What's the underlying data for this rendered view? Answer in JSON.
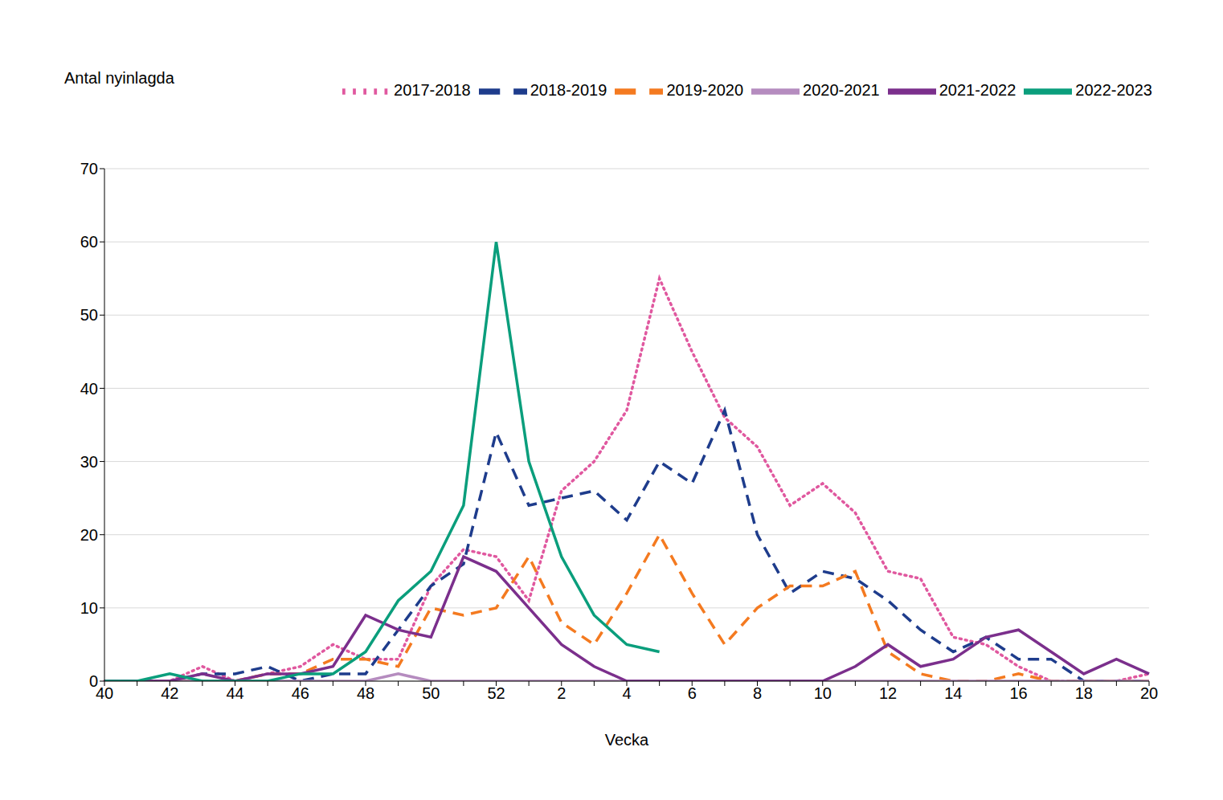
{
  "chart_data": {
    "type": "line",
    "y_label": "Antal nyinlagda",
    "x_label": "Vecka",
    "categories": [
      "40",
      null,
      "42",
      null,
      "44",
      null,
      "46",
      null,
      "48",
      null,
      "50",
      null,
      "52",
      null,
      "2",
      null,
      "4",
      null,
      "6",
      null,
      "8",
      null,
      "10",
      null,
      "12",
      null,
      "14",
      null,
      "16",
      null,
      "18",
      null,
      "20"
    ],
    "ylim": [
      0,
      70
    ],
    "yticks": [
      0,
      10,
      20,
      30,
      40,
      50,
      60,
      70
    ],
    "grid": true,
    "legend": "top",
    "series": [
      {
        "name": "2017-2018",
        "color": "#e0589f",
        "line_style": "dotted",
        "values": [
          0,
          0,
          0,
          2,
          0,
          1,
          2,
          5,
          3,
          3,
          13,
          18,
          17,
          11,
          26,
          30,
          37,
          55,
          45,
          36,
          32,
          24,
          27,
          23,
          15,
          14,
          6,
          5,
          2,
          0,
          0,
          0,
          1
        ]
      },
      {
        "name": "2018-2019",
        "color": "#1e3c8c",
        "line_style": "dashed",
        "values": [
          0,
          0,
          0,
          1,
          1,
          2,
          0,
          1,
          1,
          7,
          13,
          16,
          34,
          24,
          25,
          26,
          22,
          30,
          27,
          37,
          20,
          12,
          15,
          14,
          11,
          7,
          4,
          6,
          3,
          3,
          0,
          0,
          0
        ]
      },
      {
        "name": "2019-2020",
        "color": "#f47a20",
        "line_style": "dashed",
        "values": [
          0,
          0,
          0,
          0,
          0,
          1,
          1,
          3,
          3,
          2,
          10,
          9,
          10,
          17,
          8,
          5,
          12,
          20,
          12,
          5,
          10,
          13,
          13,
          15,
          4,
          1,
          0,
          0,
          1,
          0,
          0,
          0,
          0
        ]
      },
      {
        "name": "2020-2021",
        "color": "#b58cbf",
        "line_style": "solid",
        "values": [
          0,
          0,
          0,
          0,
          0,
          0,
          0,
          0,
          0,
          1,
          0,
          0,
          0,
          0,
          0,
          0,
          0,
          0,
          0,
          0,
          0,
          0,
          0,
          0,
          0,
          0,
          0,
          0,
          0,
          0,
          0,
          0,
          0
        ]
      },
      {
        "name": "2021-2022",
        "color": "#7b2f8c",
        "line_style": "solid",
        "values": [
          0,
          0,
          0,
          1,
          0,
          1,
          1,
          2,
          9,
          7,
          6,
          17,
          15,
          10,
          5,
          2,
          0,
          0,
          0,
          0,
          0,
          0,
          0,
          2,
          5,
          2,
          3,
          6,
          7,
          4,
          1,
          3,
          1
        ]
      },
      {
        "name": "2022-2023",
        "color": "#0a9e7c",
        "line_style": "solid",
        "values": [
          0,
          0,
          1,
          0,
          0,
          0,
          1,
          1,
          4,
          11,
          15,
          24,
          60,
          30,
          17,
          9,
          5,
          4,
          null,
          null,
          null,
          null,
          null,
          null,
          null,
          null,
          null,
          null,
          null,
          null,
          null,
          null,
          null
        ]
      }
    ]
  }
}
